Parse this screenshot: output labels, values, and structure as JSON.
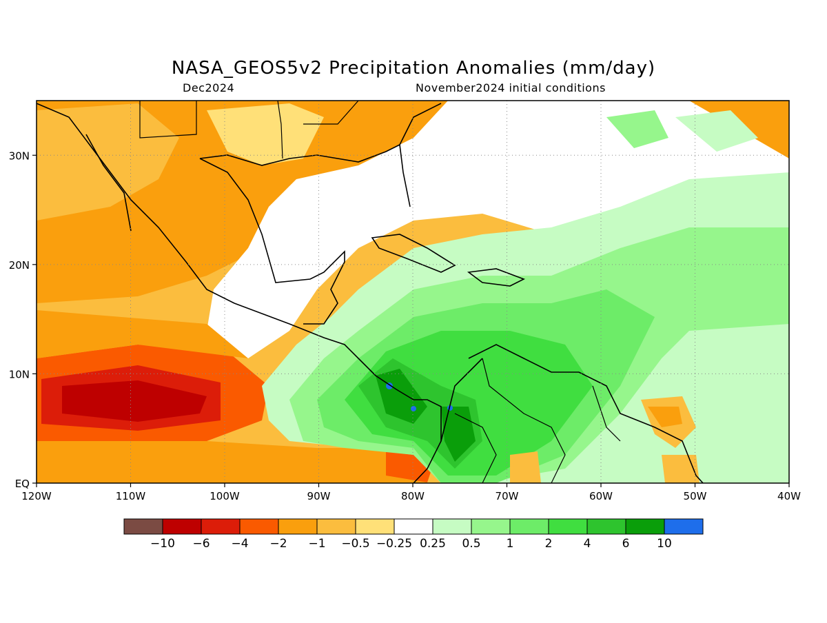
{
  "title": "NASA_GEOS5v2 Precipitation Anomalies (mm/day)",
  "subtitle_left": "Dec2024",
  "subtitle_right": "November2024 initial conditions",
  "map": {
    "lon_range": [
      -120,
      -40
    ],
    "lat_range": [
      0,
      35
    ],
    "lon_ticks": [
      {
        "lon": -120,
        "label": "120W"
      },
      {
        "lon": -110,
        "label": "110W"
      },
      {
        "lon": -100,
        "label": "100W"
      },
      {
        "lon": -90,
        "label": "90W"
      },
      {
        "lon": -80,
        "label": "80W"
      },
      {
        "lon": -70,
        "label": "70W"
      },
      {
        "lon": -60,
        "label": "60W"
      },
      {
        "lon": -50,
        "label": "50W"
      },
      {
        "lon": -40,
        "label": "40W"
      }
    ],
    "lat_ticks": [
      {
        "lat": 0,
        "label": "EQ"
      },
      {
        "lat": 10,
        "label": "10N"
      },
      {
        "lat": 20,
        "label": "20N"
      },
      {
        "lat": 30,
        "label": "30N"
      }
    ],
    "grid": "dotted"
  },
  "colorbar": {
    "colors": [
      "#7b4b43",
      "#be0000",
      "#dc1d09",
      "#fa5a00",
      "#fa9f0d",
      "#fbbd3e",
      "#ffe078",
      "#ffffff",
      "#c6fcc3",
      "#96f68c",
      "#6dec68",
      "#40de40",
      "#2ec42e",
      "#0a9e0a",
      "#1e6eeb"
    ],
    "labels": [
      "−10",
      "−6",
      "−4",
      "−2",
      "−1",
      "−0.5",
      "−0.25",
      "0.25",
      "0.5",
      "1",
      "2",
      "4",
      "6",
      "10"
    ]
  }
}
